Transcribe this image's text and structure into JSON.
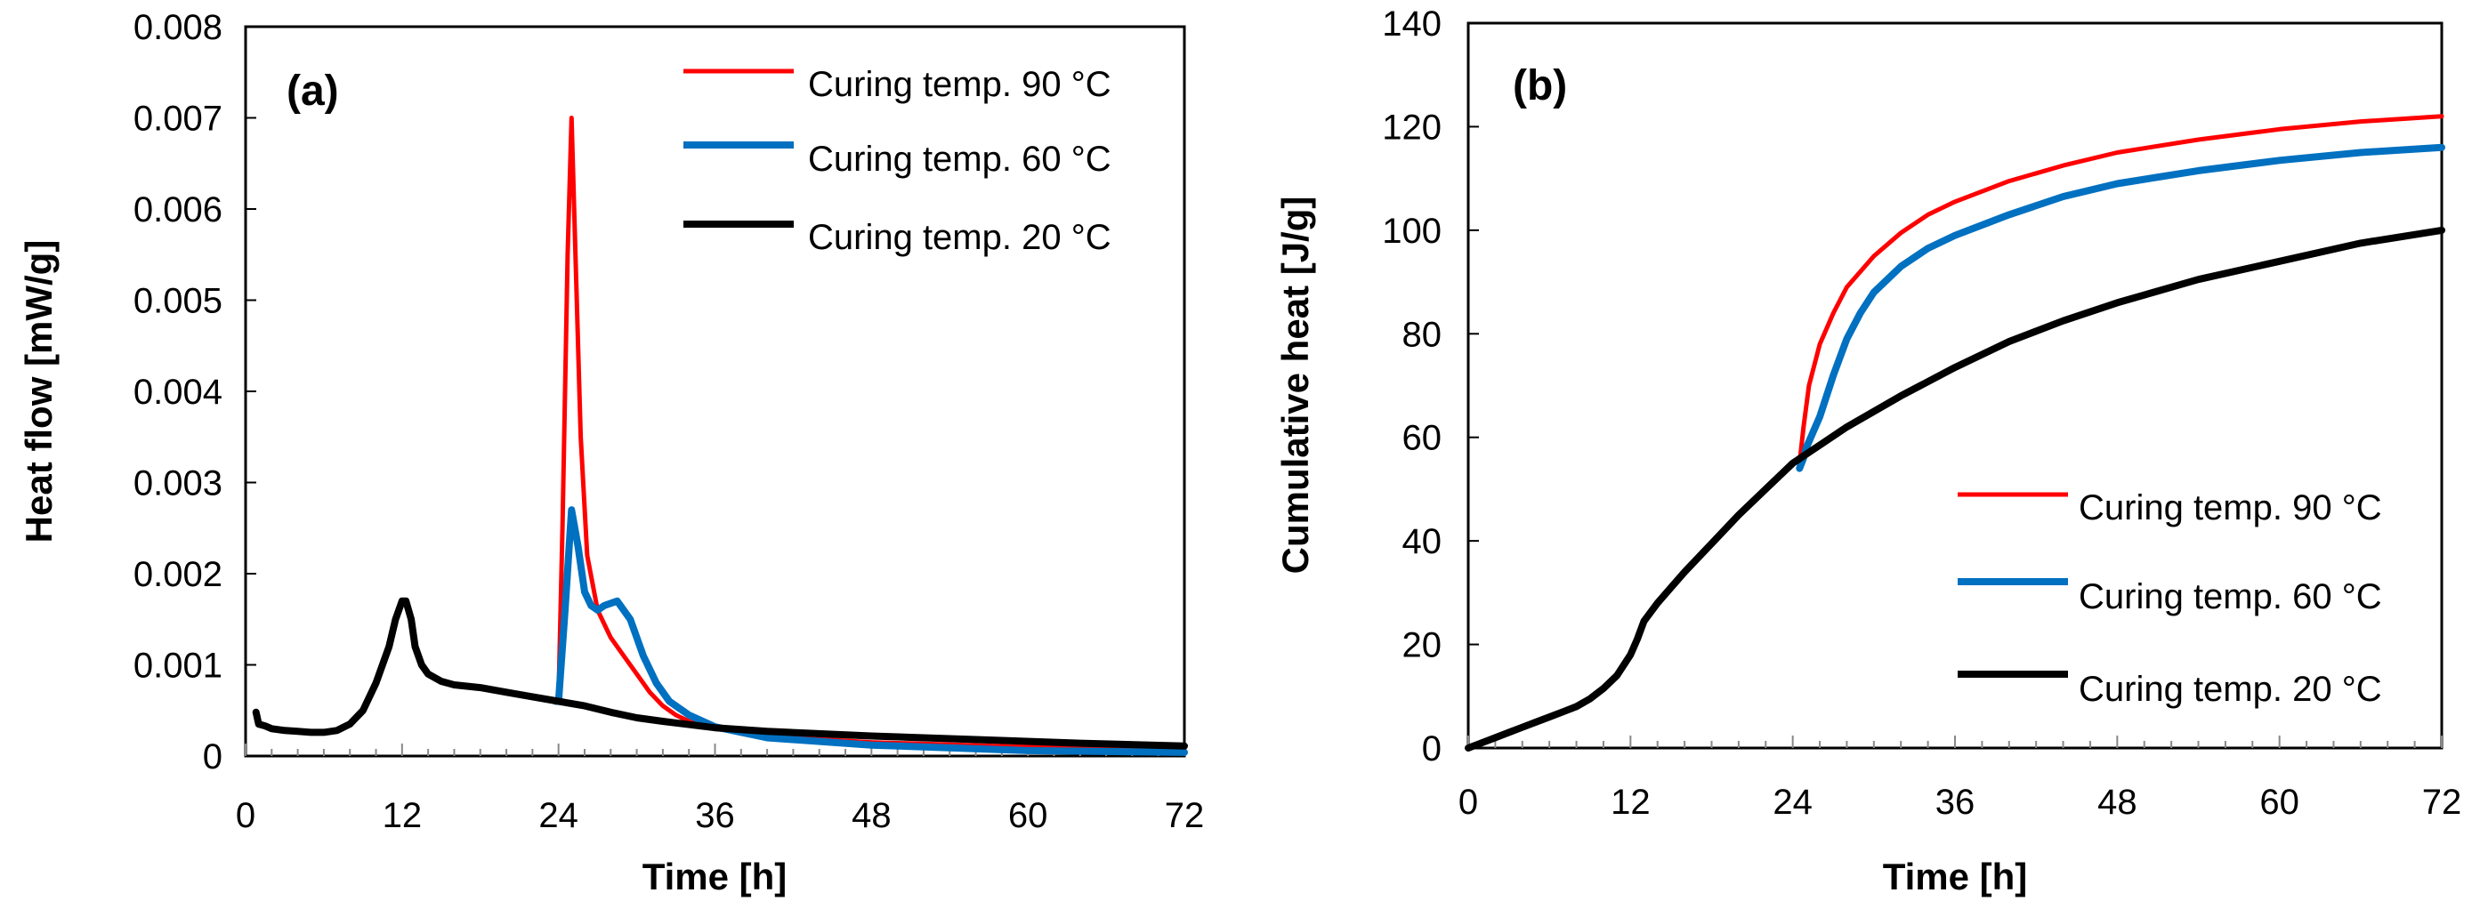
{
  "colors": {
    "s90": "#ff0000",
    "s60": "#0070c0",
    "s20": "#000000"
  },
  "chart_data": [
    {
      "type": "line",
      "panel_label": "(a)",
      "xlabel": "Time [h]",
      "ylabel": "Heat flow  [mW/g]",
      "xlim": [
        0,
        72
      ],
      "ylim": [
        0,
        0.008
      ],
      "x_ticks": [
        "0",
        "12",
        "24",
        "36",
        "48",
        "60",
        "72"
      ],
      "y_ticks": [
        "0",
        "0.001",
        "0.002",
        "0.003",
        "0.004",
        "0.005",
        "0.006",
        "0.007",
        "0.008"
      ],
      "legend_position": "top-right",
      "series": [
        {
          "name": "Curing temp. 90 °C",
          "color_key": "s90",
          "x": [
            24,
            24.3,
            24.7,
            25,
            25.3,
            25.7,
            26.2,
            27,
            28,
            29,
            30,
            31,
            32,
            33,
            34,
            36,
            40,
            48,
            60,
            72
          ],
          "y": [
            0.00065,
            0.0025,
            0.0055,
            0.007,
            0.0055,
            0.0035,
            0.0022,
            0.0016,
            0.0013,
            0.0011,
            0.0009,
            0.0007,
            0.00055,
            0.00045,
            0.00038,
            0.0003,
            0.00022,
            0.00015,
            0.0001,
            8e-05
          ]
        },
        {
          "name": "Curing temp. 60 °C",
          "color_key": "s60",
          "x": [
            23.8,
            24,
            24.5,
            25,
            25.5,
            26,
            26.5,
            27,
            27.5,
            28.5,
            29.5,
            30.5,
            31.5,
            32.5,
            34,
            36,
            40,
            48,
            60,
            72
          ],
          "y": [
            0.0006,
            0.0006,
            0.0016,
            0.0027,
            0.0023,
            0.0018,
            0.00165,
            0.0016,
            0.00165,
            0.0017,
            0.0015,
            0.0011,
            0.0008,
            0.0006,
            0.00045,
            0.00032,
            0.0002,
            0.00012,
            6e-05,
            4e-05
          ]
        },
        {
          "name": "Curing temp. 20 °C",
          "color_key": "s20",
          "x": [
            0.8,
            1,
            1.5,
            2,
            3,
            4,
            5,
            6,
            7,
            8,
            9,
            10,
            11,
            11.5,
            12,
            12.3,
            12.7,
            13,
            13.5,
            14,
            15,
            16,
            18,
            20,
            22,
            24,
            26,
            28,
            30,
            32,
            36,
            40,
            48,
            56,
            64,
            72
          ],
          "y": [
            0.00048,
            0.00035,
            0.00033,
            0.0003,
            0.00028,
            0.00027,
            0.00026,
            0.00026,
            0.00028,
            0.00035,
            0.0005,
            0.0008,
            0.0012,
            0.0015,
            0.0017,
            0.0017,
            0.0015,
            0.0012,
            0.001,
            0.0009,
            0.00082,
            0.00078,
            0.00075,
            0.0007,
            0.00065,
            0.0006,
            0.00055,
            0.00048,
            0.00042,
            0.00038,
            0.00031,
            0.00027,
            0.00022,
            0.00018,
            0.00014,
            0.00011
          ]
        }
      ]
    },
    {
      "type": "line",
      "panel_label": "(b)",
      "xlabel": "Time [h]",
      "ylabel": "Cumulative heat [J/g]",
      "xlim": [
        0,
        72
      ],
      "ylim": [
        0,
        140
      ],
      "x_ticks": [
        "0",
        "12",
        "24",
        "36",
        "48",
        "60",
        "72"
      ],
      "y_ticks": [
        "0",
        "20",
        "40",
        "60",
        "80",
        "100",
        "120",
        "140"
      ],
      "legend_position": "bottom-right",
      "series": [
        {
          "name": "Curing temp. 90 °C",
          "color_key": "s90",
          "x": [
            24.5,
            24.8,
            25.2,
            26,
            27,
            28,
            30,
            32,
            34,
            36,
            40,
            44,
            48,
            54,
            60,
            66,
            72
          ],
          "y": [
            55,
            62,
            70,
            78,
            84,
            89,
            95,
            99.5,
            103,
            105.5,
            109.5,
            112.5,
            115,
            117.5,
            119.5,
            121,
            122
          ]
        },
        {
          "name": "Curing temp. 60 °C",
          "color_key": "s60",
          "x": [
            24.5,
            24.8,
            25,
            26,
            27,
            28,
            29,
            30,
            32,
            34,
            36,
            40,
            44,
            48,
            54,
            60,
            66,
            72
          ],
          "y": [
            54,
            56,
            58,
            64,
            72,
            79,
            84,
            88,
            93,
            96.5,
            99,
            103,
            106.5,
            109,
            111.5,
            113.5,
            115,
            116
          ]
        },
        {
          "name": "Curing temp. 20 °C",
          "color_key": "s20",
          "x": [
            0,
            1,
            2,
            3,
            4,
            5,
            6,
            7,
            8,
            9,
            10,
            11,
            12,
            12.5,
            13,
            14,
            15,
            16,
            18,
            20,
            22,
            24,
            26,
            28,
            30,
            32,
            36,
            40,
            44,
            48,
            54,
            60,
            66,
            72
          ],
          "y": [
            0,
            1,
            2,
            3,
            4,
            5,
            6,
            7,
            8,
            9.5,
            11.5,
            14,
            18,
            21,
            24.5,
            28,
            31,
            34,
            39.5,
            45,
            50,
            55,
            58.5,
            62,
            65,
            68,
            73.5,
            78.5,
            82.5,
            86,
            90.5,
            94,
            97.5,
            100
          ]
        }
      ]
    }
  ]
}
